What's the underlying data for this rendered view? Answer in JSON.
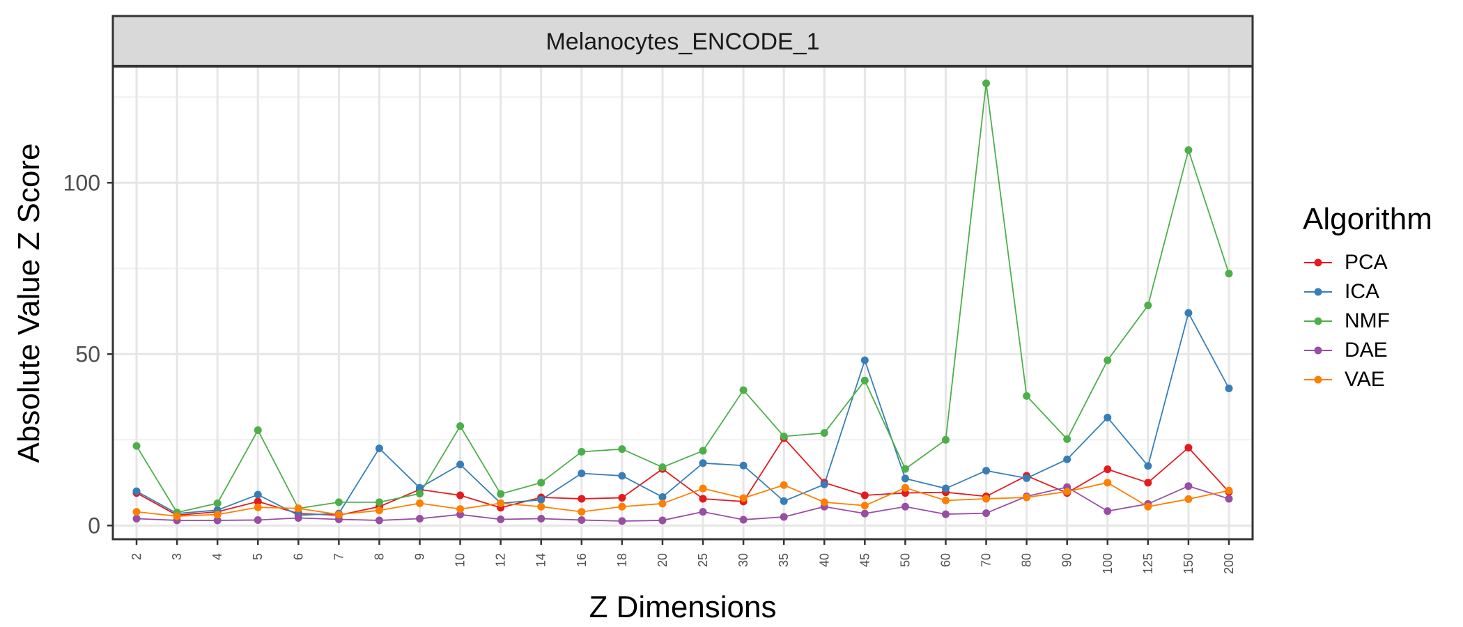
{
  "chart_data": {
    "type": "line",
    "facet_title": "Melanocytes_ENCODE_1",
    "xlabel": "Z Dimensions",
    "ylabel": "Absolute Value Z Score",
    "categories": [
      "2",
      "3",
      "4",
      "5",
      "6",
      "7",
      "8",
      "9",
      "10",
      "12",
      "14",
      "16",
      "18",
      "20",
      "25",
      "30",
      "35",
      "40",
      "45",
      "50",
      "60",
      "70",
      "80",
      "90",
      "100",
      "125",
      "150",
      "200"
    ],
    "ylim": [
      -4,
      134
    ],
    "yticks": [
      0,
      50,
      100
    ],
    "grid": true,
    "legend": {
      "title": "Algorithm",
      "position": "right"
    },
    "series": [
      {
        "name": "PCA",
        "color": "#E41A1C",
        "values": [
          9.5,
          3,
          4,
          7,
          3.5,
          3,
          5.5,
          10.5,
          8.8,
          5.2,
          8.2,
          7.8,
          8.1,
          16.5,
          7.8,
          7,
          25.5,
          12.5,
          8.8,
          9.5,
          9.7,
          8.5,
          14.5,
          9.5,
          16.4,
          12.5,
          22.7,
          9.8
        ]
      },
      {
        "name": "ICA",
        "color": "#377EB8",
        "values": [
          10,
          3.5,
          4.5,
          9,
          3,
          3.5,
          22.5,
          11,
          17.8,
          6.5,
          7.5,
          15.2,
          14.5,
          8.3,
          18.2,
          17.5,
          7.1,
          12,
          48.2,
          13.7,
          10.8,
          16,
          13.8,
          19.3,
          31.5,
          17.4,
          62,
          40
        ]
      },
      {
        "name": "NMF",
        "color": "#4DAF4A",
        "values": [
          23.2,
          3.8,
          6.5,
          27.8,
          5,
          6.8,
          6.8,
          9.3,
          29,
          9.2,
          12.5,
          21.5,
          22.3,
          17,
          21.8,
          39.5,
          26,
          27,
          42.3,
          16.5,
          25,
          129,
          37.8,
          25.2,
          48.2,
          64.2,
          109.5,
          73.5
        ]
      },
      {
        "name": "DAE",
        "color": "#984EA3",
        "values": [
          2,
          1.5,
          1.5,
          1.6,
          2.2,
          1.8,
          1.5,
          2,
          3.2,
          1.8,
          2,
          1.6,
          1.3,
          1.5,
          4,
          1.7,
          2.5,
          5.5,
          3.5,
          5.5,
          3.3,
          3.6,
          8.5,
          11.2,
          4.2,
          6.3,
          11.5,
          7.8
        ]
      },
      {
        "name": "VAE",
        "color": "#FF7F00",
        "values": [
          4,
          2.7,
          3.2,
          5.3,
          5,
          3.2,
          4.4,
          6.5,
          4.8,
          6.5,
          5.5,
          4,
          5.5,
          6.4,
          10.8,
          8,
          11.8,
          6.8,
          5.8,
          11,
          7.3,
          7.8,
          8.2,
          9.9,
          12.5,
          5.5,
          7.7,
          10.2
        ]
      }
    ]
  }
}
